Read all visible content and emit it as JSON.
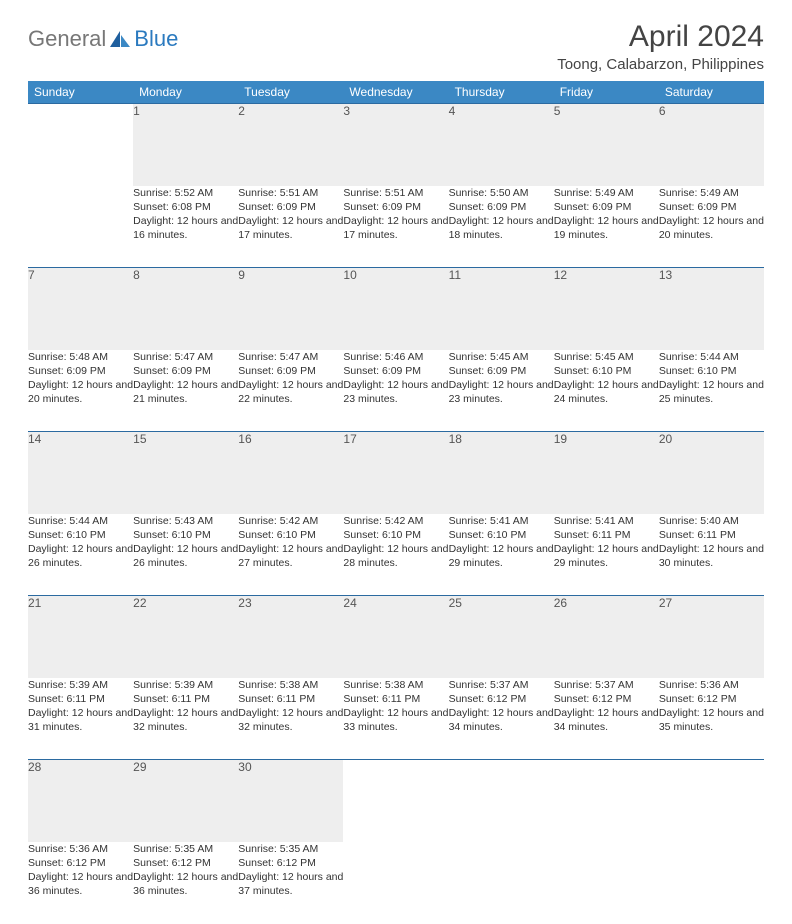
{
  "logo": {
    "text1": "General",
    "text2": "Blue"
  },
  "title": "April 2024",
  "location": "Toong, Calabarzon, Philippines",
  "colors": {
    "header_bg": "#3b88c4",
    "header_text": "#ffffff",
    "daynum_bg": "#eeeeee",
    "border": "#2b6aa0",
    "logo_accent": "#2b7abf",
    "text": "#333333"
  },
  "fonts": {
    "title_size": 30,
    "location_size": 15,
    "dayheader_size": 12,
    "daynum_size": 12,
    "cell_size": 10.5
  },
  "weekdays": [
    "Sunday",
    "Monday",
    "Tuesday",
    "Wednesday",
    "Thursday",
    "Friday",
    "Saturday"
  ],
  "weeks": [
    [
      null,
      {
        "n": "1",
        "sr": "Sunrise: 5:52 AM",
        "ss": "Sunset: 6:08 PM",
        "dl": "Daylight: 12 hours and 16 minutes."
      },
      {
        "n": "2",
        "sr": "Sunrise: 5:51 AM",
        "ss": "Sunset: 6:09 PM",
        "dl": "Daylight: 12 hours and 17 minutes."
      },
      {
        "n": "3",
        "sr": "Sunrise: 5:51 AM",
        "ss": "Sunset: 6:09 PM",
        "dl": "Daylight: 12 hours and 17 minutes."
      },
      {
        "n": "4",
        "sr": "Sunrise: 5:50 AM",
        "ss": "Sunset: 6:09 PM",
        "dl": "Daylight: 12 hours and 18 minutes."
      },
      {
        "n": "5",
        "sr": "Sunrise: 5:49 AM",
        "ss": "Sunset: 6:09 PM",
        "dl": "Daylight: 12 hours and 19 minutes."
      },
      {
        "n": "6",
        "sr": "Sunrise: 5:49 AM",
        "ss": "Sunset: 6:09 PM",
        "dl": "Daylight: 12 hours and 20 minutes."
      }
    ],
    [
      {
        "n": "7",
        "sr": "Sunrise: 5:48 AM",
        "ss": "Sunset: 6:09 PM",
        "dl": "Daylight: 12 hours and 20 minutes."
      },
      {
        "n": "8",
        "sr": "Sunrise: 5:47 AM",
        "ss": "Sunset: 6:09 PM",
        "dl": "Daylight: 12 hours and 21 minutes."
      },
      {
        "n": "9",
        "sr": "Sunrise: 5:47 AM",
        "ss": "Sunset: 6:09 PM",
        "dl": "Daylight: 12 hours and 22 minutes."
      },
      {
        "n": "10",
        "sr": "Sunrise: 5:46 AM",
        "ss": "Sunset: 6:09 PM",
        "dl": "Daylight: 12 hours and 23 minutes."
      },
      {
        "n": "11",
        "sr": "Sunrise: 5:45 AM",
        "ss": "Sunset: 6:09 PM",
        "dl": "Daylight: 12 hours and 23 minutes."
      },
      {
        "n": "12",
        "sr": "Sunrise: 5:45 AM",
        "ss": "Sunset: 6:10 PM",
        "dl": "Daylight: 12 hours and 24 minutes."
      },
      {
        "n": "13",
        "sr": "Sunrise: 5:44 AM",
        "ss": "Sunset: 6:10 PM",
        "dl": "Daylight: 12 hours and 25 minutes."
      }
    ],
    [
      {
        "n": "14",
        "sr": "Sunrise: 5:44 AM",
        "ss": "Sunset: 6:10 PM",
        "dl": "Daylight: 12 hours and 26 minutes."
      },
      {
        "n": "15",
        "sr": "Sunrise: 5:43 AM",
        "ss": "Sunset: 6:10 PM",
        "dl": "Daylight: 12 hours and 26 minutes."
      },
      {
        "n": "16",
        "sr": "Sunrise: 5:42 AM",
        "ss": "Sunset: 6:10 PM",
        "dl": "Daylight: 12 hours and 27 minutes."
      },
      {
        "n": "17",
        "sr": "Sunrise: 5:42 AM",
        "ss": "Sunset: 6:10 PM",
        "dl": "Daylight: 12 hours and 28 minutes."
      },
      {
        "n": "18",
        "sr": "Sunrise: 5:41 AM",
        "ss": "Sunset: 6:10 PM",
        "dl": "Daylight: 12 hours and 29 minutes."
      },
      {
        "n": "19",
        "sr": "Sunrise: 5:41 AM",
        "ss": "Sunset: 6:11 PM",
        "dl": "Daylight: 12 hours and 29 minutes."
      },
      {
        "n": "20",
        "sr": "Sunrise: 5:40 AM",
        "ss": "Sunset: 6:11 PM",
        "dl": "Daylight: 12 hours and 30 minutes."
      }
    ],
    [
      {
        "n": "21",
        "sr": "Sunrise: 5:39 AM",
        "ss": "Sunset: 6:11 PM",
        "dl": "Daylight: 12 hours and 31 minutes."
      },
      {
        "n": "22",
        "sr": "Sunrise: 5:39 AM",
        "ss": "Sunset: 6:11 PM",
        "dl": "Daylight: 12 hours and 32 minutes."
      },
      {
        "n": "23",
        "sr": "Sunrise: 5:38 AM",
        "ss": "Sunset: 6:11 PM",
        "dl": "Daylight: 12 hours and 32 minutes."
      },
      {
        "n": "24",
        "sr": "Sunrise: 5:38 AM",
        "ss": "Sunset: 6:11 PM",
        "dl": "Daylight: 12 hours and 33 minutes."
      },
      {
        "n": "25",
        "sr": "Sunrise: 5:37 AM",
        "ss": "Sunset: 6:12 PM",
        "dl": "Daylight: 12 hours and 34 minutes."
      },
      {
        "n": "26",
        "sr": "Sunrise: 5:37 AM",
        "ss": "Sunset: 6:12 PM",
        "dl": "Daylight: 12 hours and 34 minutes."
      },
      {
        "n": "27",
        "sr": "Sunrise: 5:36 AM",
        "ss": "Sunset: 6:12 PM",
        "dl": "Daylight: 12 hours and 35 minutes."
      }
    ],
    [
      {
        "n": "28",
        "sr": "Sunrise: 5:36 AM",
        "ss": "Sunset: 6:12 PM",
        "dl": "Daylight: 12 hours and 36 minutes."
      },
      {
        "n": "29",
        "sr": "Sunrise: 5:35 AM",
        "ss": "Sunset: 6:12 PM",
        "dl": "Daylight: 12 hours and 36 minutes."
      },
      {
        "n": "30",
        "sr": "Sunrise: 5:35 AM",
        "ss": "Sunset: 6:12 PM",
        "dl": "Daylight: 12 hours and 37 minutes."
      },
      null,
      null,
      null,
      null
    ]
  ]
}
